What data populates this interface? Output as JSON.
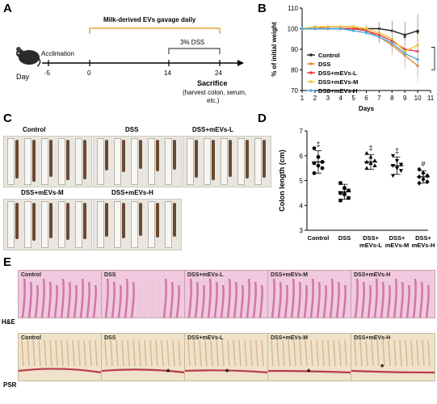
{
  "panels": {
    "a": "A",
    "b": "B",
    "c": "C",
    "d": "D",
    "e": "E"
  },
  "timeline": {
    "gavage_label": "Milk-derived EVs gavage daily",
    "dss_label": "3% DSS",
    "acclimation": "Acclimation",
    "day": "Day",
    "ticks": [
      "-5",
      "0",
      "14",
      "24"
    ],
    "sacrifice": "Sacrifice",
    "sacrifice_note_1": "(harvest colon, serum,",
    "sacrifice_note_2": "etc.)"
  },
  "chart_data": [
    {
      "type": "line",
      "ylabel": "% of initial weight",
      "xlabel": "Days",
      "x": [
        1,
        2,
        3,
        4,
        5,
        6,
        7,
        8,
        9,
        10
      ],
      "xticks": [
        1,
        2,
        3,
        4,
        5,
        6,
        7,
        8,
        9,
        10,
        11
      ],
      "yticks": [
        70,
        80,
        90,
        100,
        110
      ],
      "xlim": [
        1,
        11
      ],
      "ylim": [
        70,
        110
      ],
      "legend_position": "inside-bottom-left",
      "series": [
        {
          "name": "Control",
          "color": "#222222",
          "values": [
            100,
            100,
            100,
            100,
            100,
            100,
            100,
            99,
            97,
            99
          ]
        },
        {
          "name": "DSS",
          "color": "#f08a30",
          "values": [
            100,
            100,
            101,
            101,
            101,
            99,
            96,
            92,
            87,
            82
          ]
        },
        {
          "name": "DSS+mEVs-L",
          "color": "#e8303a",
          "values": [
            100,
            100,
            100,
            100,
            100,
            99,
            97,
            94,
            90,
            89
          ]
        },
        {
          "name": "DSS+mEVs-M",
          "color": "#f2c230",
          "values": [
            100,
            101,
            101,
            101,
            101,
            100,
            98,
            95,
            89,
            92
          ]
        },
        {
          "name": "DSS+mEVs-H",
          "color": "#4aa8e0",
          "values": [
            100,
            100,
            100,
            100,
            99,
            98,
            96,
            93,
            88,
            85
          ]
        }
      ],
      "annotations": [
        "*",
        "*"
      ]
    },
    {
      "type": "scatter",
      "ylabel": "Colon length (cm)",
      "categories": [
        "Control",
        "DSS",
        "DSS+\nmEVs-L",
        "DSS+\nmEVs-M",
        "DSS+\nmEVs-H"
      ],
      "category_lines": [
        [
          "Control"
        ],
        [
          "DSS"
        ],
        [
          "DSS+",
          "mEVs-L"
        ],
        [
          "DSS+",
          "mEVs-M"
        ],
        [
          "DSS+",
          "mEVs-H"
        ]
      ],
      "yticks": [
        3,
        4,
        5,
        6,
        7
      ],
      "ylim": [
        3,
        7
      ],
      "means": [
        5.75,
        4.55,
        5.75,
        5.6,
        5.15
      ],
      "sd": [
        0.45,
        0.3,
        0.3,
        0.35,
        0.25
      ],
      "markers": [
        "circle",
        "square",
        "triangle",
        "triangle-down",
        "diamond"
      ],
      "points": [
        [
          6.3,
          5.95,
          5.75,
          5.7,
          5.6,
          5.5,
          5.3
        ],
        [
          4.9,
          4.7,
          4.6,
          4.5,
          4.45,
          4.3,
          4.2
        ],
        [
          6.1,
          5.95,
          5.8,
          5.75,
          5.7,
          5.6,
          5.5
        ],
        [
          6.0,
          5.8,
          5.65,
          5.6,
          5.5,
          5.4,
          5.2
        ],
        [
          5.45,
          5.3,
          5.2,
          5.15,
          5.05,
          4.95,
          4.9
        ]
      ],
      "annotations": [
        "‡",
        "",
        "‡",
        "‡",
        "#"
      ]
    }
  ],
  "gross": {
    "groups": [
      "Control",
      "DSS",
      "DSS+mEVs-L",
      "DSS+mEVs-M",
      "DSS+mEVs-H"
    ]
  },
  "histology": {
    "rows": [
      "H&E",
      "PSR"
    ],
    "groups": [
      "Control",
      "DSS",
      "DSS+mEVs-L",
      "DSS+mEVs-M",
      "DSS+mEVs-H"
    ],
    "star": "*"
  }
}
